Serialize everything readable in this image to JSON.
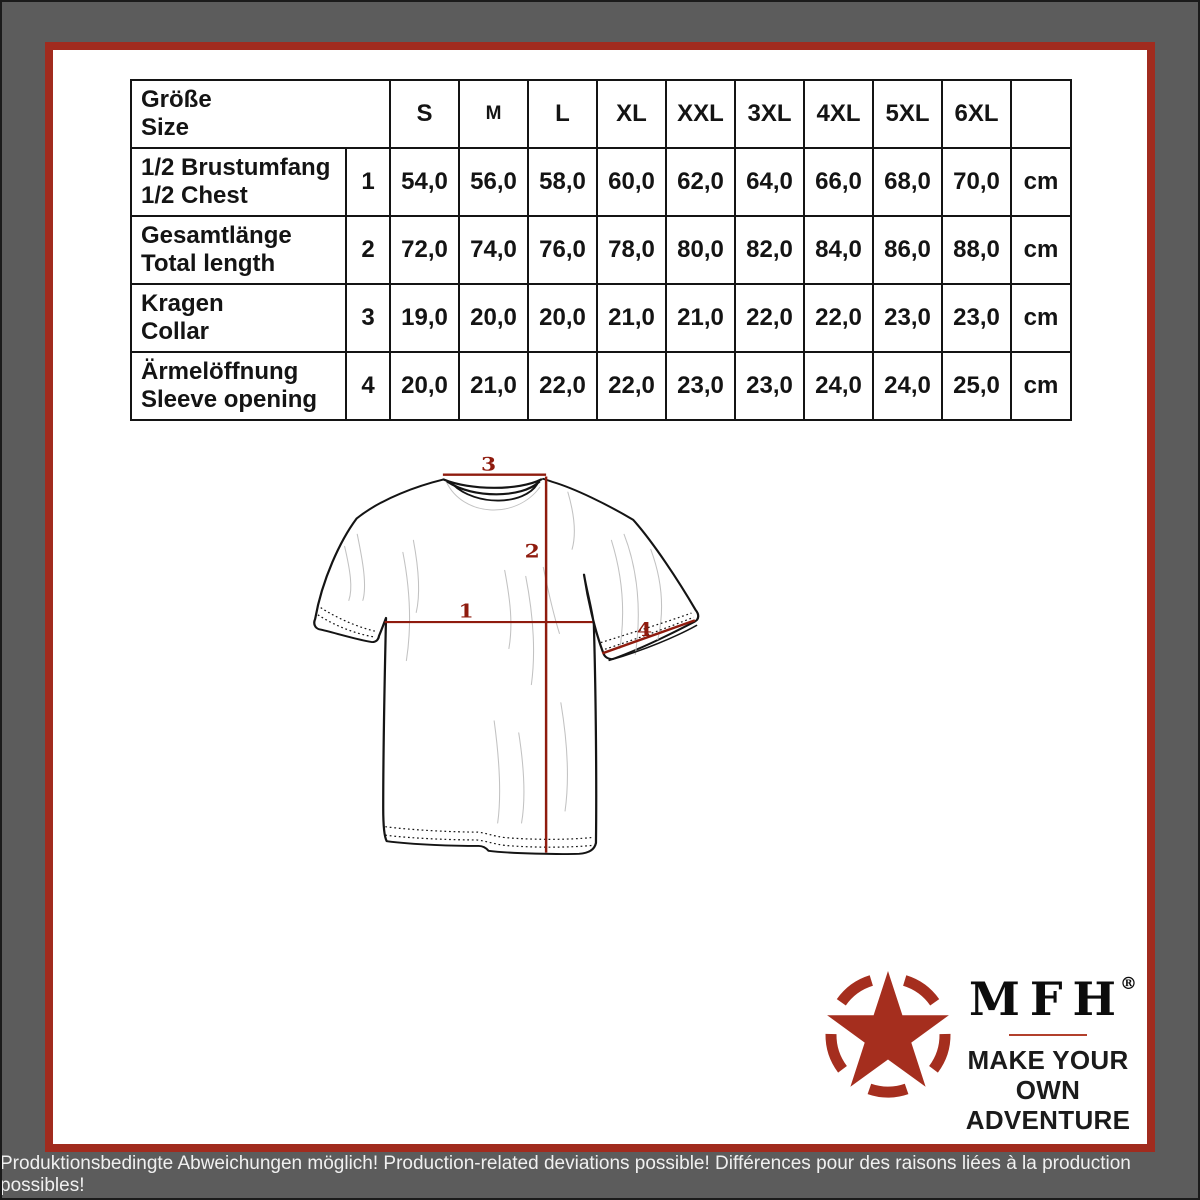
{
  "page": {
    "frame_gray": "#5c5c5c",
    "accent_red": "#a12b1e",
    "measure_line_red": "#8f1b0e",
    "star_red": "#a52e1e"
  },
  "size_table": {
    "header": {
      "label_de": "Größe",
      "label_en": "Size",
      "sizes": [
        "S",
        "M",
        "L",
        "XL",
        "XXL",
        "3XL",
        "4XL",
        "5XL",
        "6XL"
      ],
      "unit_header": ""
    },
    "rows": [
      {
        "label_de": "1/2 Brustumfang",
        "label_en": "1/2 Chest",
        "num": "1",
        "values": [
          "54,0",
          "56,0",
          "58,0",
          "60,0",
          "62,0",
          "64,0",
          "66,0",
          "68,0",
          "70,0"
        ],
        "unit": "cm"
      },
      {
        "label_de": "Gesamtlänge",
        "label_en": "Total length",
        "num": "2",
        "values": [
          "72,0",
          "74,0",
          "76,0",
          "78,0",
          "80,0",
          "82,0",
          "84,0",
          "86,0",
          "88,0"
        ],
        "unit": "cm"
      },
      {
        "label_de": "Kragen",
        "label_en": "Collar",
        "num": "3",
        "values": [
          "19,0",
          "20,0",
          "20,0",
          "21,0",
          "21,0",
          "22,0",
          "22,0",
          "23,0",
          "23,0"
        ],
        "unit": "cm"
      },
      {
        "label_de": "Ärmelöffnung",
        "label_en": "Sleeve opening",
        "num": "4",
        "values": [
          "20,0",
          "21,0",
          "22,0",
          "22,0",
          "23,0",
          "23,0",
          "24,0",
          "24,0",
          "25,0"
        ],
        "unit": "cm"
      }
    ]
  },
  "diagram": {
    "labels": {
      "chest": "1",
      "length": "2",
      "collar": "3",
      "sleeve": "4"
    }
  },
  "brand": {
    "name": "MFH",
    "registered": "®",
    "tagline_line1": "MAKE YOUR OWN",
    "tagline_line2": "ADVENTURE"
  },
  "footer": {
    "note": "Produktionsbedingte Abweichungen möglich! Production-related deviations possible! Différences pour des raisons liées à la production possibles!"
  }
}
